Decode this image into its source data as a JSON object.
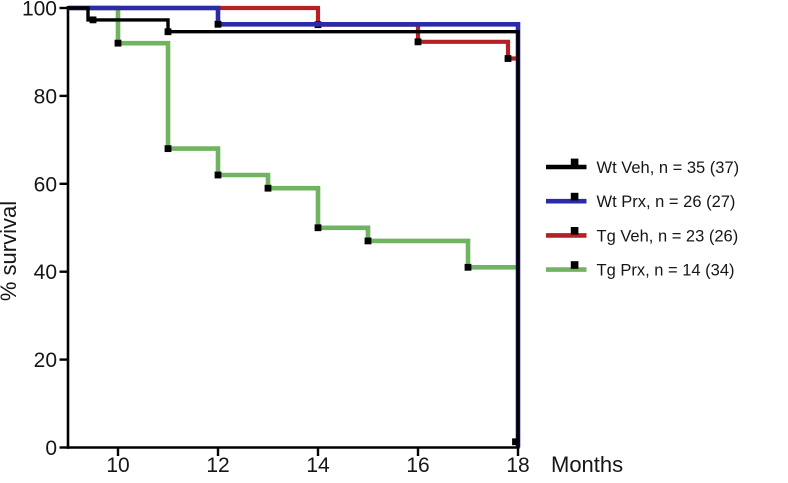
{
  "chart_data": {
    "type": "line",
    "subtype": "kaplan-meier-survival-step",
    "title": "",
    "xlabel": "Months",
    "ylabel": "% survival",
    "xlim": [
      9,
      18
    ],
    "ylim": [
      0,
      100
    ],
    "xticks": [
      10,
      12,
      14,
      16,
      18
    ],
    "yticks": [
      0,
      20,
      40,
      60,
      80,
      100
    ],
    "grid": false,
    "legend_position": "right-center",
    "axis_color": "#000000",
    "censor_marker_color": "#000000",
    "series": [
      {
        "group": "Wt Veh",
        "label": "Wt Veh, n = 35 (37)",
        "n_final": 35,
        "n_initial": 37,
        "color": "#000000",
        "points": [
          [
            9,
            100
          ],
          [
            9.4,
            100
          ],
          [
            9.4,
            97.3
          ],
          [
            11,
            97.3
          ],
          [
            11,
            94.6
          ],
          [
            18,
            94.6
          ],
          [
            18,
            0
          ]
        ],
        "censors": [
          [
            9.5,
            97.3
          ],
          [
            11,
            94.6
          ],
          [
            17.95,
            1.3
          ]
        ]
      },
      {
        "group": "Wt Prx",
        "label": "Wt Prx, n = 26 (27)",
        "n_final": 26,
        "n_initial": 27,
        "color": "#2b2ba8",
        "points": [
          [
            9,
            100
          ],
          [
            12,
            100
          ],
          [
            12,
            96.3
          ],
          [
            18,
            96.3
          ],
          [
            18,
            0
          ]
        ],
        "censors": [
          [
            12,
            96.3
          ]
        ]
      },
      {
        "group": "Tg Veh",
        "label": "Tg Veh, n = 23 (26)",
        "n_final": 23,
        "n_initial": 26,
        "color": "#b42023",
        "points": [
          [
            9,
            100
          ],
          [
            14,
            100
          ],
          [
            14,
            96.2
          ],
          [
            16,
            96.2
          ],
          [
            16,
            92.3
          ],
          [
            17.8,
            92.3
          ],
          [
            17.8,
            88.5
          ],
          [
            18,
            88.5
          ]
        ],
        "censors": [
          [
            14,
            96.2
          ],
          [
            16,
            92.3
          ],
          [
            17.8,
            88.5
          ]
        ]
      },
      {
        "group": "Tg Prx",
        "label": "Tg Prx, n = 14 (34)",
        "n_final": 14,
        "n_initial": 34,
        "color": "#70b461",
        "points": [
          [
            9,
            100
          ],
          [
            10,
            100
          ],
          [
            10,
            92
          ],
          [
            11,
            92
          ],
          [
            11,
            68
          ],
          [
            12,
            68
          ],
          [
            12,
            62
          ],
          [
            13,
            62
          ],
          [
            13,
            59
          ],
          [
            14,
            59
          ],
          [
            14,
            50
          ],
          [
            15,
            50
          ],
          [
            15,
            47
          ],
          [
            17,
            47
          ],
          [
            17,
            41
          ],
          [
            18,
            41
          ]
        ],
        "censors": [
          [
            10,
            92
          ],
          [
            11,
            68
          ],
          [
            12,
            62
          ],
          [
            13,
            59
          ],
          [
            14,
            50
          ],
          [
            15,
            47
          ],
          [
            17,
            41
          ]
        ]
      }
    ]
  }
}
